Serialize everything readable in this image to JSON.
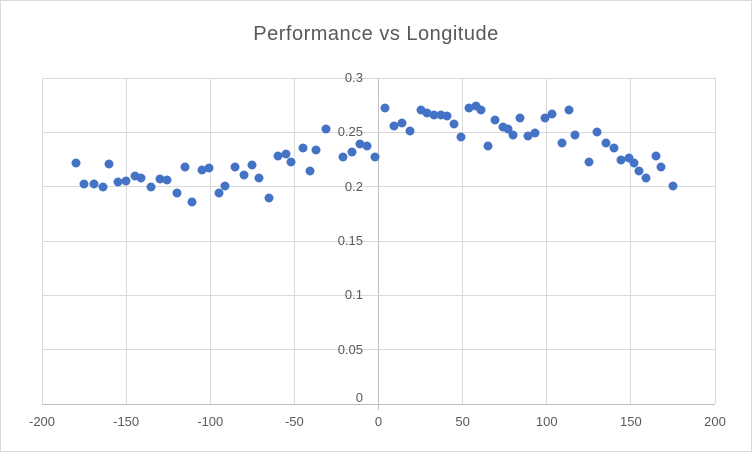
{
  "colors": {
    "marker": "#4472C4",
    "grid": "#D9D9D9",
    "axis": "#BFBFBF",
    "text": "#595959",
    "border": "#D9D9D9",
    "bg": "#FFFFFF"
  },
  "chart_data": {
    "type": "scatter",
    "title": "Performance vs Longitude",
    "xlabel": "",
    "ylabel": "",
    "legend": false,
    "grid": true,
    "xlim": [
      -200,
      200
    ],
    "ylim": [
      0,
      0.3
    ],
    "x_tick_values": [
      -200,
      -150,
      -100,
      -50,
      0,
      50,
      100,
      150,
      200
    ],
    "x_ticks": [
      "-200",
      "-150",
      "-100",
      "-50",
      "0",
      "50",
      "100",
      "150",
      "200"
    ],
    "y_tick_values": [
      0,
      0.05,
      0.1,
      0.15,
      0.2,
      0.25,
      0.3
    ],
    "y_ticks": [
      "0",
      "0.05",
      "0.1",
      "0.15",
      "0.2",
      "0.25",
      "0.3"
    ],
    "series_name": "Performance",
    "points": [
      [
        -180,
        0.222
      ],
      [
        -175,
        0.202
      ],
      [
        -169,
        0.202
      ],
      [
        -164,
        0.2
      ],
      [
        -160,
        0.221
      ],
      [
        -155,
        0.204
      ],
      [
        -150,
        0.205
      ],
      [
        -145,
        0.21
      ],
      [
        -141,
        0.208
      ],
      [
        -135,
        0.2
      ],
      [
        -130,
        0.207
      ],
      [
        -126,
        0.206
      ],
      [
        -120,
        0.194
      ],
      [
        -115,
        0.218
      ],
      [
        -111,
        0.186
      ],
      [
        -105,
        0.215
      ],
      [
        -101,
        0.217
      ],
      [
        -95,
        0.194
      ],
      [
        -91,
        0.201
      ],
      [
        -85,
        0.218
      ],
      [
        -80,
        0.211
      ],
      [
        -75,
        0.22
      ],
      [
        -71,
        0.208
      ],
      [
        -65,
        0.19
      ],
      [
        -60,
        0.228
      ],
      [
        -55,
        0.23
      ],
      [
        -52,
        0.223
      ],
      [
        -45,
        0.236
      ],
      [
        -41,
        0.214
      ],
      [
        -37,
        0.234
      ],
      [
        -31,
        0.253
      ],
      [
        -21,
        0.227
      ],
      [
        -16,
        0.232
      ],
      [
        -11,
        0.239
      ],
      [
        -7,
        0.237
      ],
      [
        -2,
        0.227
      ],
      [
        4,
        0.272
      ],
      [
        9,
        0.256
      ],
      [
        14,
        0.259
      ],
      [
        19,
        0.251
      ],
      [
        25,
        0.271
      ],
      [
        29,
        0.268
      ],
      [
        33,
        0.266
      ],
      [
        37,
        0.266
      ],
      [
        41,
        0.265
      ],
      [
        45,
        0.258
      ],
      [
        49,
        0.246
      ],
      [
        54,
        0.272
      ],
      [
        58,
        0.274
      ],
      [
        61,
        0.271
      ],
      [
        65,
        0.237
      ],
      [
        69,
        0.261
      ],
      [
        74,
        0.255
      ],
      [
        77,
        0.253
      ],
      [
        80,
        0.248
      ],
      [
        84,
        0.263
      ],
      [
        89,
        0.247
      ],
      [
        93,
        0.249
      ],
      [
        99,
        0.263
      ],
      [
        103,
        0.267
      ],
      [
        109,
        0.24
      ],
      [
        113,
        0.271
      ],
      [
        117,
        0.248
      ],
      [
        125,
        0.223
      ],
      [
        130,
        0.25
      ],
      [
        135,
        0.24
      ],
      [
        140,
        0.236
      ],
      [
        144,
        0.225
      ],
      [
        149,
        0.226
      ],
      [
        152,
        0.222
      ],
      [
        155,
        0.214
      ],
      [
        159,
        0.208
      ],
      [
        165,
        0.228
      ],
      [
        168,
        0.218
      ],
      [
        175,
        0.201
      ]
    ]
  }
}
